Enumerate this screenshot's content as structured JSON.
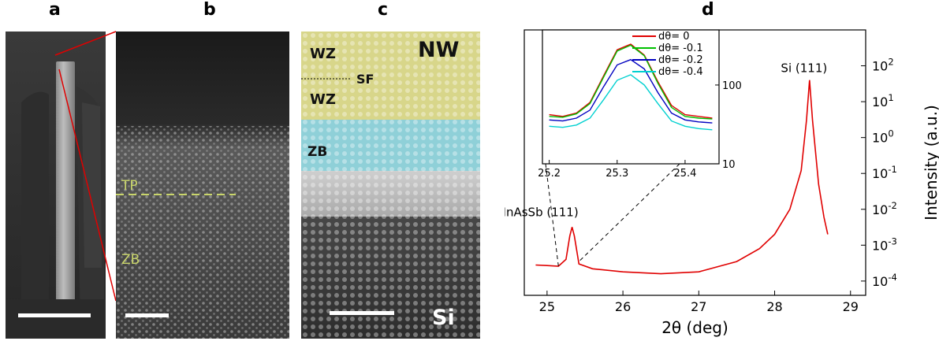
{
  "panels": {
    "a": {
      "letter": "a"
    },
    "b": {
      "letter": "b",
      "tp_label": "TP",
      "zb_label": "ZB"
    },
    "c": {
      "letter": "c",
      "nw_label": "NW",
      "wz_top": "WZ",
      "sf_label": "SF",
      "wz_bottom": "WZ",
      "zb_label": "ZB",
      "si_label": "Si"
    },
    "d": {
      "letter": "d"
    }
  },
  "colors": {
    "wz_band": "#d8d68a",
    "zb_band": "#8fd0d8",
    "label_yellowgreen": "#c9d56b",
    "scan_red": "#e00000"
  },
  "chart_data": [
    {
      "type": "line",
      "title": "",
      "xlabel": "2θ (deg)",
      "ylabel": "Intensity (a.u.)",
      "x_ticks": [
        25,
        26,
        27,
        28,
        29
      ],
      "y_scale": "log",
      "y_tick_labels": [
        "10-4",
        "10-3",
        "10-2",
        "10-1",
        "100",
        "101",
        "102"
      ],
      "xlim": [
        24.7,
        29.2
      ],
      "ylim": [
        4e-05,
        1000
      ],
      "annotations": [
        {
          "text": "Si (111)",
          "x": 28.45,
          "y": 40
        },
        {
          "text": "InAsSb (111)",
          "x": 25.33,
          "y": 0.0035
        }
      ],
      "series": [
        {
          "color": "#e00000",
          "x": [
            24.85,
            25.0,
            25.15,
            25.25,
            25.3,
            25.33,
            25.36,
            25.42,
            25.6,
            26.0,
            26.5,
            27.0,
            27.5,
            27.8,
            28.0,
            28.2,
            28.35,
            28.42,
            28.46,
            28.5,
            28.58,
            28.65,
            28.7
          ],
          "y": [
            0.00028,
            0.00027,
            0.00026,
            0.0004,
            0.0018,
            0.0032,
            0.0018,
            0.0003,
            0.00022,
            0.00018,
            0.00016,
            0.00018,
            0.00035,
            0.0008,
            0.002,
            0.01,
            0.12,
            3.0,
            40,
            3.0,
            0.05,
            0.006,
            0.002
          ]
        }
      ]
    },
    {
      "type": "line",
      "title": "",
      "xlabel": "",
      "ylabel": "",
      "x_ticks": [
        25.2,
        25.3,
        25.4
      ],
      "y_scale": "log",
      "y_tick_labels": [
        "10",
        "100"
      ],
      "xlim": [
        25.19,
        25.45
      ],
      "ylim": [
        10,
        500
      ],
      "legend_position": "top-right",
      "series": [
        {
          "name": "dθ= 0",
          "color": "#e00000",
          "x": [
            25.2,
            25.22,
            25.24,
            25.26,
            25.28,
            25.3,
            25.32,
            25.34,
            25.36,
            25.38,
            25.4,
            25.42,
            25.44
          ],
          "y": [
            42,
            40,
            44,
            60,
            130,
            280,
            330,
            240,
            110,
            55,
            42,
            40,
            38
          ]
        },
        {
          "name": "dθ= -0.1",
          "color": "#00c000",
          "x": [
            25.2,
            25.22,
            25.24,
            25.26,
            25.28,
            25.3,
            25.32,
            25.34,
            25.36,
            25.38,
            25.4,
            25.42,
            25.44
          ],
          "y": [
            40,
            39,
            43,
            58,
            125,
            270,
            320,
            235,
            105,
            52,
            40,
            38,
            37
          ]
        },
        {
          "name": "dθ= -0.2",
          "color": "#0000c0",
          "x": [
            25.2,
            25.22,
            25.24,
            25.26,
            25.28,
            25.3,
            25.32,
            25.34,
            25.36,
            25.38,
            25.4,
            25.42,
            25.44
          ],
          "y": [
            36,
            35,
            38,
            48,
            95,
            180,
            210,
            160,
            80,
            44,
            36,
            34,
            33
          ]
        },
        {
          "name": "dθ= -0.4",
          "color": "#00d0d0",
          "x": [
            25.2,
            25.22,
            25.24,
            25.26,
            25.28,
            25.3,
            25.32,
            25.34,
            25.36,
            25.38,
            25.4,
            25.42,
            25.44
          ],
          "y": [
            30,
            29,
            31,
            38,
            65,
            115,
            135,
            100,
            58,
            35,
            30,
            28,
            27
          ]
        }
      ]
    }
  ]
}
